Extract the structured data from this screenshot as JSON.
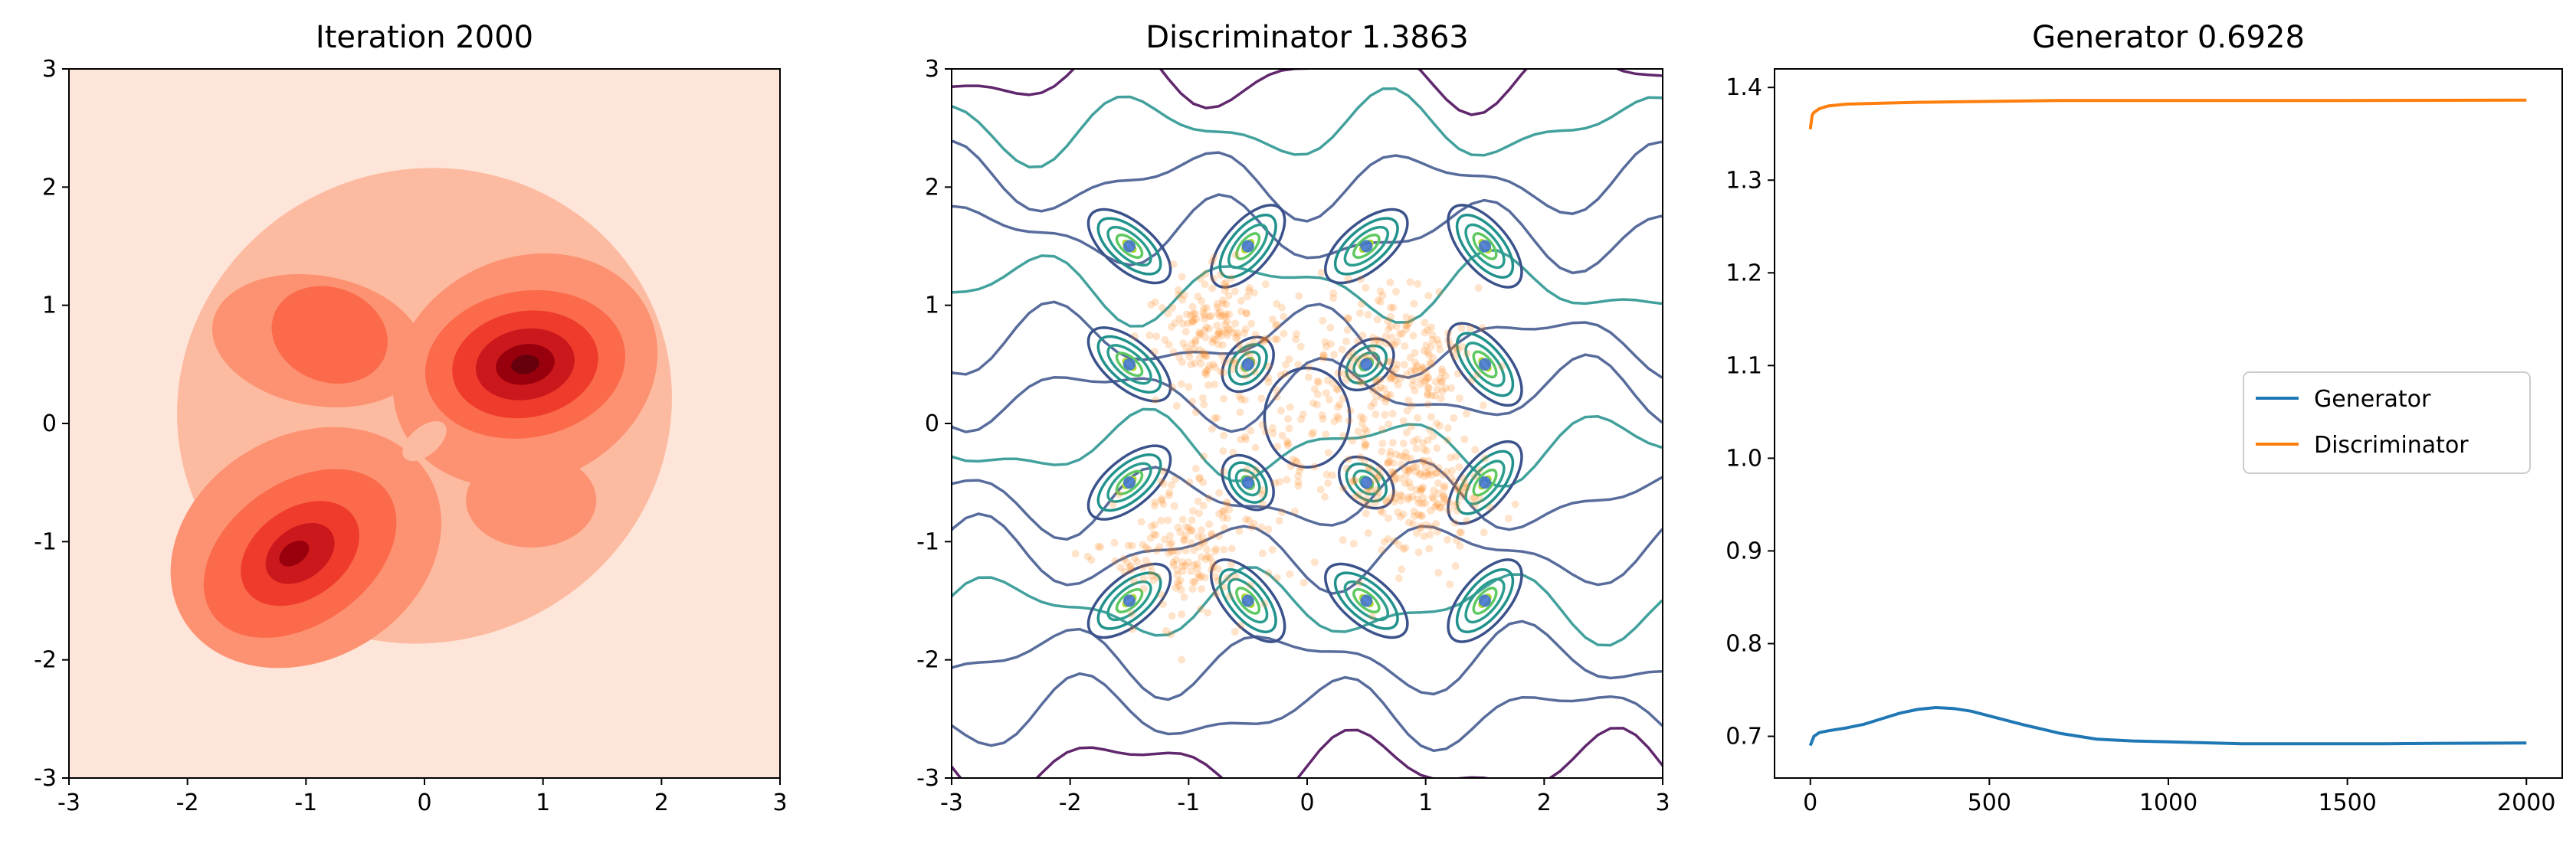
{
  "chart_data": [
    {
      "type": "heatmap",
      "subtype": "filled-contour",
      "title": "Iteration 2000",
      "xlim": [
        -3,
        3
      ],
      "ylim": [
        -3,
        3
      ],
      "xticks": [
        "-3",
        "-2",
        "-1",
        "0",
        "1",
        "2",
        "3"
      ],
      "yticks": [
        "-3",
        "-2",
        "-1",
        "0",
        "1",
        "2",
        "3"
      ],
      "colormap": "Reds",
      "colors": [
        "#fee5d9",
        "#fcbba1",
        "#fc9272",
        "#fb6a4a",
        "#ef3b2c",
        "#cb181d",
        "#99000d",
        "#67000d"
      ],
      "density_peaks": [
        {
          "x": 0.85,
          "y": 0.5,
          "intensity": 1.0
        },
        {
          "x": -1.05,
          "y": -1.1,
          "intensity": 0.85
        },
        {
          "x": -0.8,
          "y": 0.75,
          "intensity": 0.5
        },
        {
          "x": 1.0,
          "y": -0.7,
          "intensity": 0.35
        },
        {
          "x": 0.0,
          "y": 0.0,
          "intensity": 0.3
        }
      ],
      "grid": false
    },
    {
      "type": "scatter",
      "subtype": "contour-with-scatter",
      "title": "Discriminator 1.3863",
      "xlim": [
        -3,
        3
      ],
      "ylim": [
        -3,
        3
      ],
      "xticks": [
        "-3",
        "-2",
        "-1",
        "0",
        "1",
        "2",
        "3"
      ],
      "yticks": [
        "-3",
        "-2",
        "-1",
        "0",
        "1",
        "2",
        "3"
      ],
      "colormap": "viridis",
      "contour_colors": [
        "#440154",
        "#3b528b",
        "#21918c",
        "#2a9d8f",
        "#5ec962",
        "#addc30"
      ],
      "real_points": [
        [
          -1.5,
          1.5
        ],
        [
          -0.5,
          1.5
        ],
        [
          0.5,
          1.5
        ],
        [
          1.5,
          1.5
        ],
        [
          -1.5,
          0.5
        ],
        [
          -0.5,
          0.5
        ],
        [
          0.5,
          0.5
        ],
        [
          1.5,
          0.5
        ],
        [
          -1.5,
          -0.5
        ],
        [
          -0.5,
          -0.5
        ],
        [
          0.5,
          -0.5
        ],
        [
          1.5,
          -0.5
        ],
        [
          -1.5,
          -1.5
        ],
        [
          -0.5,
          -1.5
        ],
        [
          0.5,
          -1.5
        ],
        [
          1.5,
          -1.5
        ]
      ],
      "real_point_color": "#3b6fd1",
      "generated_point_color": "#ff7f0e",
      "grid": false
    },
    {
      "type": "line",
      "title": "Generator 0.6928",
      "xlim": [
        -100,
        2100
      ],
      "ylim": [
        0.655,
        1.42
      ],
      "xticks": [
        0,
        500,
        1000,
        1500,
        2000
      ],
      "yticks": [
        "0.7",
        "0.8",
        "0.9",
        "1.0",
        "1.1",
        "1.2",
        "1.3",
        "1.4"
      ],
      "series": [
        {
          "name": "Generator",
          "color": "#1f77b4",
          "x": [
            0,
            10,
            25,
            50,
            100,
            150,
            200,
            250,
            300,
            350,
            400,
            450,
            500,
            600,
            700,
            800,
            900,
            1000,
            1200,
            1400,
            1600,
            1800,
            2000
          ],
          "y": [
            0.69,
            0.7,
            0.704,
            0.706,
            0.709,
            0.713,
            0.719,
            0.725,
            0.729,
            0.731,
            0.73,
            0.727,
            0.722,
            0.712,
            0.703,
            0.697,
            0.695,
            0.694,
            0.692,
            0.692,
            0.692,
            0.6925,
            0.6928
          ]
        },
        {
          "name": "Discriminator",
          "color": "#ff7f0e",
          "x": [
            0,
            5,
            10,
            25,
            50,
            100,
            200,
            300,
            500,
            700,
            1000,
            1500,
            2000
          ],
          "y": [
            1.355,
            1.37,
            1.373,
            1.377,
            1.38,
            1.382,
            1.383,
            1.384,
            1.385,
            1.386,
            1.386,
            1.386,
            1.3863
          ]
        }
      ],
      "legend": "center-right",
      "grid": false
    }
  ]
}
